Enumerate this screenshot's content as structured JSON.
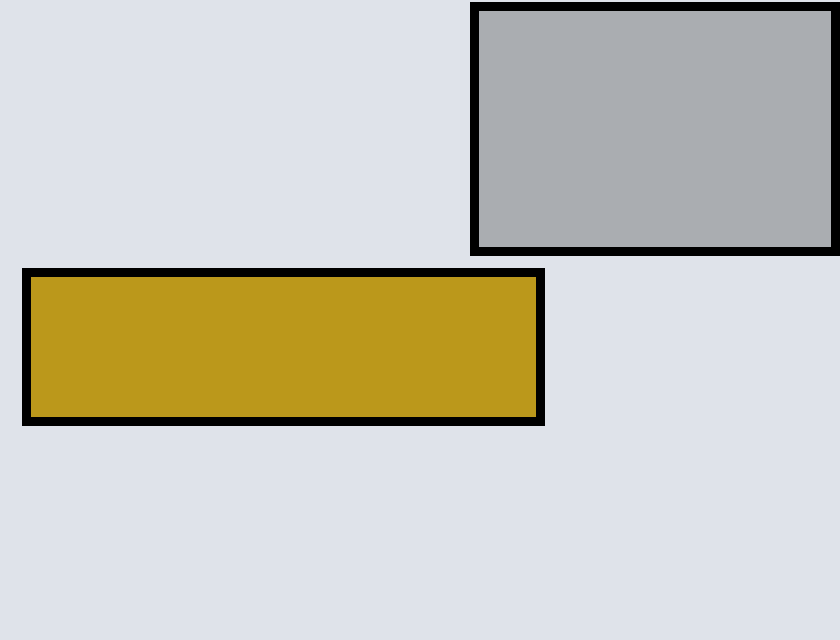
{
  "colors": {
    "background": "#dfe3ea",
    "border": "#000000"
  },
  "shapes": [
    {
      "name": "gray-rectangle",
      "fill": "#aaadb1"
    },
    {
      "name": "gold-rectangle",
      "fill": "#bb981b"
    }
  ]
}
